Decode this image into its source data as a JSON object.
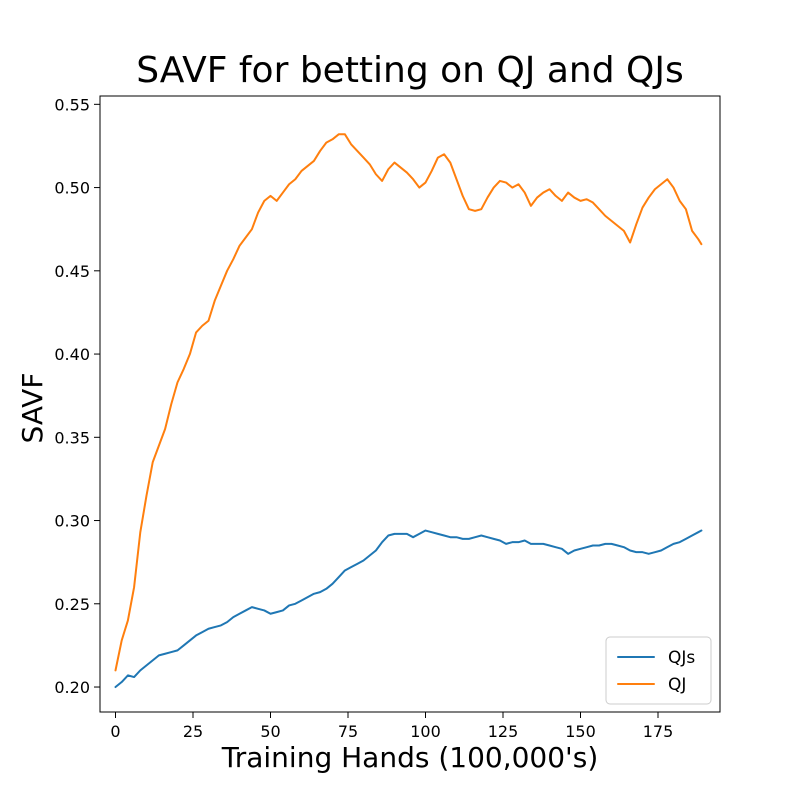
{
  "chart_data": {
    "type": "line",
    "title": "SAVF for betting on QJ and QJs",
    "xlabel": "Training Hands (100,000's)",
    "ylabel": "SAVF",
    "xlim": [
      -5,
      195
    ],
    "ylim": [
      0.185,
      0.555
    ],
    "xticks": [
      0,
      25,
      50,
      75,
      100,
      125,
      150,
      175
    ],
    "xtick_labels": [
      "0",
      "25",
      "50",
      "75",
      "100",
      "125",
      "150",
      "175"
    ],
    "yticks": [
      0.2,
      0.25,
      0.3,
      0.35,
      0.4,
      0.45,
      0.5,
      0.55
    ],
    "ytick_labels": [
      "0.20",
      "0.25",
      "0.30",
      "0.35",
      "0.40",
      "0.45",
      "0.50",
      "0.55"
    ],
    "grid": false,
    "legend_position": "lower-right",
    "series": [
      {
        "name": "QJs",
        "color": "#1f77b4",
        "points": [
          [
            0,
            0.2
          ],
          [
            2,
            0.203
          ],
          [
            4,
            0.207
          ],
          [
            6,
            0.206
          ],
          [
            8,
            0.21
          ],
          [
            10,
            0.213
          ],
          [
            12,
            0.216
          ],
          [
            14,
            0.219
          ],
          [
            16,
            0.22
          ],
          [
            18,
            0.221
          ],
          [
            20,
            0.222
          ],
          [
            22,
            0.225
          ],
          [
            24,
            0.228
          ],
          [
            26,
            0.231
          ],
          [
            28,
            0.233
          ],
          [
            30,
            0.235
          ],
          [
            32,
            0.236
          ],
          [
            34,
            0.237
          ],
          [
            36,
            0.239
          ],
          [
            38,
            0.242
          ],
          [
            40,
            0.244
          ],
          [
            42,
            0.246
          ],
          [
            44,
            0.248
          ],
          [
            46,
            0.247
          ],
          [
            48,
            0.246
          ],
          [
            50,
            0.244
          ],
          [
            52,
            0.245
          ],
          [
            54,
            0.246
          ],
          [
            56,
            0.249
          ],
          [
            58,
            0.25
          ],
          [
            60,
            0.252
          ],
          [
            62,
            0.254
          ],
          [
            64,
            0.256
          ],
          [
            66,
            0.257
          ],
          [
            68,
            0.259
          ],
          [
            70,
            0.262
          ],
          [
            72,
            0.266
          ],
          [
            74,
            0.27
          ],
          [
            76,
            0.272
          ],
          [
            78,
            0.274
          ],
          [
            80,
            0.276
          ],
          [
            82,
            0.279
          ],
          [
            84,
            0.282
          ],
          [
            86,
            0.287
          ],
          [
            88,
            0.291
          ],
          [
            90,
            0.292
          ],
          [
            92,
            0.292
          ],
          [
            94,
            0.292
          ],
          [
            96,
            0.29
          ],
          [
            98,
            0.292
          ],
          [
            100,
            0.294
          ],
          [
            102,
            0.293
          ],
          [
            104,
            0.292
          ],
          [
            106,
            0.291
          ],
          [
            108,
            0.29
          ],
          [
            110,
            0.29
          ],
          [
            112,
            0.289
          ],
          [
            114,
            0.289
          ],
          [
            116,
            0.29
          ],
          [
            118,
            0.291
          ],
          [
            120,
            0.29
          ],
          [
            122,
            0.289
          ],
          [
            124,
            0.288
          ],
          [
            126,
            0.286
          ],
          [
            128,
            0.287
          ],
          [
            130,
            0.287
          ],
          [
            132,
            0.288
          ],
          [
            134,
            0.286
          ],
          [
            136,
            0.286
          ],
          [
            138,
            0.286
          ],
          [
            140,
            0.285
          ],
          [
            142,
            0.284
          ],
          [
            144,
            0.283
          ],
          [
            146,
            0.28
          ],
          [
            148,
            0.282
          ],
          [
            150,
            0.283
          ],
          [
            152,
            0.284
          ],
          [
            154,
            0.285
          ],
          [
            156,
            0.285
          ],
          [
            158,
            0.286
          ],
          [
            160,
            0.286
          ],
          [
            162,
            0.285
          ],
          [
            164,
            0.284
          ],
          [
            166,
            0.282
          ],
          [
            168,
            0.281
          ],
          [
            170,
            0.281
          ],
          [
            172,
            0.28
          ],
          [
            174,
            0.281
          ],
          [
            176,
            0.282
          ],
          [
            178,
            0.284
          ],
          [
            180,
            0.286
          ],
          [
            182,
            0.287
          ],
          [
            184,
            0.289
          ],
          [
            186,
            0.291
          ],
          [
            188,
            0.293
          ],
          [
            189,
            0.294
          ]
        ]
      },
      {
        "name": "QJ",
        "color": "#ff7f0e",
        "points": [
          [
            0,
            0.21
          ],
          [
            2,
            0.228
          ],
          [
            4,
            0.24
          ],
          [
            6,
            0.26
          ],
          [
            8,
            0.293
          ],
          [
            10,
            0.315
          ],
          [
            12,
            0.335
          ],
          [
            14,
            0.345
          ],
          [
            16,
            0.355
          ],
          [
            18,
            0.37
          ],
          [
            20,
            0.383
          ],
          [
            22,
            0.391
          ],
          [
            24,
            0.4
          ],
          [
            26,
            0.413
          ],
          [
            28,
            0.417
          ],
          [
            30,
            0.42
          ],
          [
            32,
            0.432
          ],
          [
            34,
            0.441
          ],
          [
            36,
            0.45
          ],
          [
            38,
            0.457
          ],
          [
            40,
            0.465
          ],
          [
            42,
            0.47
          ],
          [
            44,
            0.475
          ],
          [
            46,
            0.485
          ],
          [
            48,
            0.492
          ],
          [
            50,
            0.495
          ],
          [
            52,
            0.492
          ],
          [
            54,
            0.497
          ],
          [
            56,
            0.502
          ],
          [
            58,
            0.505
          ],
          [
            60,
            0.51
          ],
          [
            62,
            0.513
          ],
          [
            64,
            0.516
          ],
          [
            66,
            0.522
          ],
          [
            68,
            0.527
          ],
          [
            70,
            0.529
          ],
          [
            72,
            0.532
          ],
          [
            74,
            0.532
          ],
          [
            76,
            0.526
          ],
          [
            78,
            0.522
          ],
          [
            80,
            0.518
          ],
          [
            82,
            0.514
          ],
          [
            84,
            0.508
          ],
          [
            86,
            0.504
          ],
          [
            88,
            0.511
          ],
          [
            90,
            0.515
          ],
          [
            92,
            0.512
          ],
          [
            94,
            0.509
          ],
          [
            96,
            0.505
          ],
          [
            98,
            0.5
          ],
          [
            100,
            0.503
          ],
          [
            102,
            0.51
          ],
          [
            104,
            0.518
          ],
          [
            106,
            0.52
          ],
          [
            108,
            0.515
          ],
          [
            110,
            0.505
          ],
          [
            112,
            0.495
          ],
          [
            114,
            0.487
          ],
          [
            116,
            0.486
          ],
          [
            118,
            0.487
          ],
          [
            120,
            0.494
          ],
          [
            122,
            0.5
          ],
          [
            124,
            0.504
          ],
          [
            126,
            0.503
          ],
          [
            128,
            0.5
          ],
          [
            130,
            0.502
          ],
          [
            132,
            0.497
          ],
          [
            134,
            0.489
          ],
          [
            136,
            0.494
          ],
          [
            138,
            0.497
          ],
          [
            140,
            0.499
          ],
          [
            142,
            0.495
          ],
          [
            144,
            0.492
          ],
          [
            146,
            0.497
          ],
          [
            148,
            0.494
          ],
          [
            150,
            0.492
          ],
          [
            152,
            0.493
          ],
          [
            154,
            0.491
          ],
          [
            156,
            0.487
          ],
          [
            158,
            0.483
          ],
          [
            160,
            0.48
          ],
          [
            162,
            0.477
          ],
          [
            164,
            0.474
          ],
          [
            166,
            0.467
          ],
          [
            168,
            0.478
          ],
          [
            170,
            0.488
          ],
          [
            172,
            0.494
          ],
          [
            174,
            0.499
          ],
          [
            176,
            0.502
          ],
          [
            178,
            0.505
          ],
          [
            180,
            0.5
          ],
          [
            182,
            0.492
          ],
          [
            184,
            0.487
          ],
          [
            186,
            0.474
          ],
          [
            188,
            0.469
          ],
          [
            189,
            0.466
          ]
        ]
      }
    ]
  }
}
